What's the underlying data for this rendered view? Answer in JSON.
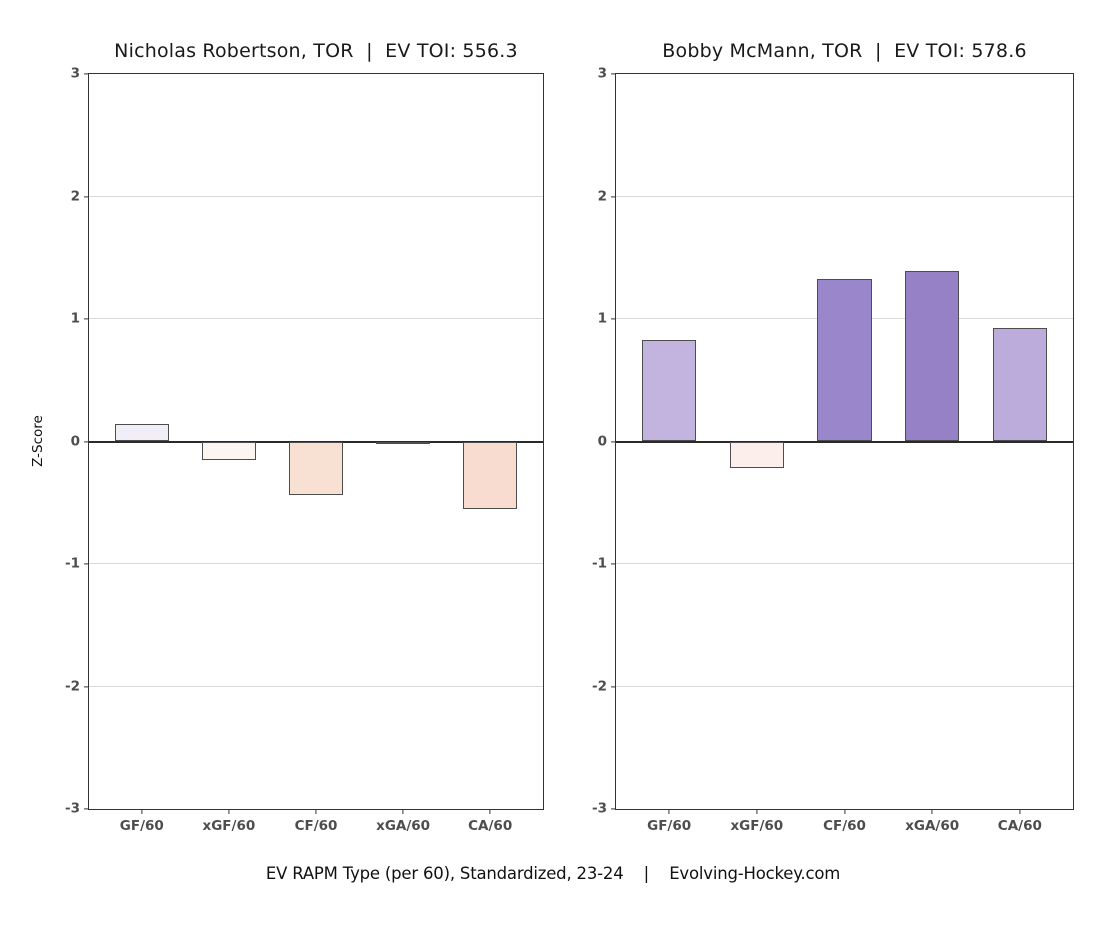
{
  "figure": {
    "ylabel": "Z-Score",
    "caption": "EV RAPM Type (per 60), Standardized, 23-24    |    Evolving-Hockey.com"
  },
  "style": {
    "background": "#ffffff",
    "panel_border": "#333333",
    "gridline": "#d9d9d9",
    "zero_line": "#2a2a2a",
    "bar_border": "#4d4d4d",
    "tick_label_color": "#4d4d4d",
    "title_color": "#1a1a1a"
  },
  "chart_data": [
    {
      "type": "bar",
      "title": "Nicholas Robertson, TOR  |  EV TOI: 556.3",
      "ylabel": "Z-Score",
      "categories": [
        "GF/60",
        "xGF/60",
        "CF/60",
        "xGA/60",
        "CA/60"
      ],
      "values": [
        0.14,
        -0.15,
        -0.44,
        -0.02,
        -0.55
      ],
      "bar_colors": [
        "#f1eef7",
        "#fdf5f0",
        "#f8e0d3",
        "#efeaf2",
        "#f7dccf"
      ],
      "ylim": [
        -3,
        3
      ],
      "yticks": [
        3,
        2,
        1,
        0,
        -1,
        -2,
        -3
      ],
      "grid": true,
      "legend": "none"
    },
    {
      "type": "bar",
      "title": "Bobby McMann, TOR  |  EV TOI: 578.6",
      "ylabel": "Z-Score",
      "categories": [
        "GF/60",
        "xGF/60",
        "CF/60",
        "xGA/60",
        "CA/60"
      ],
      "values": [
        0.83,
        -0.22,
        1.33,
        1.39,
        0.93
      ],
      "bar_colors": [
        "#c3b3df",
        "#fceeea",
        "#9a86cb",
        "#9681c7",
        "#bcacdb"
      ],
      "ylim": [
        -3,
        3
      ],
      "yticks": [
        3,
        2,
        1,
        0,
        -1,
        -2,
        -3
      ],
      "grid": true,
      "legend": "none"
    }
  ]
}
